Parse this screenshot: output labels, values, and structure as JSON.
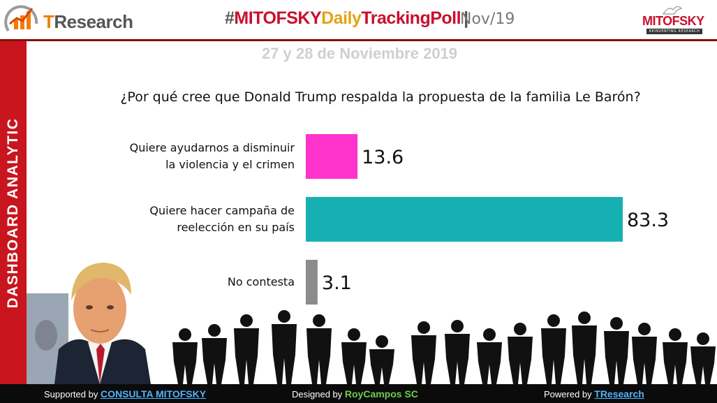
{
  "header": {
    "brand_left_a": "T",
    "brand_left_b": "Research",
    "title_hash": "#",
    "title_part1": "MITOFSKY",
    "title_part2": "Daily",
    "title_part3": "TrackingPoll",
    "title_separator": "|",
    "month": "Nov/19",
    "brand_right": "MITOFSKY",
    "brand_right_tagline": "REINVENTING RESEARCH"
  },
  "sidebar": {
    "label": "DASHBOARD  ANALYTIC"
  },
  "date_line": "27 y 28 de Noviembre 2019",
  "colors": {
    "accent_red": "#c9151e",
    "bar_1": "#ff33cc",
    "bar_2": "#17b0b2",
    "bar_3": "#8c8c8c"
  },
  "chart_data": {
    "type": "bar",
    "orientation": "horizontal",
    "title": "¿Por qué cree que Donald Trump respalda la propuesta de la familia Le Barón?",
    "categories": [
      [
        "Quiere ayudarnos a disminuir",
        "la violencia y el crimen"
      ],
      [
        "Quiere hacer campaña de",
        "reelección en su país"
      ],
      [
        "No contesta"
      ]
    ],
    "values": [
      13.6,
      83.3,
      3.1
    ],
    "value_labels": [
      "13.6",
      "83.3",
      "3.1"
    ],
    "colors": [
      "#ff33cc",
      "#17b0b2",
      "#8c8c8c"
    ],
    "xlim": [
      0,
      100
    ],
    "grid": false,
    "legend": "none"
  },
  "footer": {
    "left_prefix": "Supported by ",
    "left_link": "CONSULTA MITOFSKY",
    "mid_prefix": "Designed by ",
    "mid_link": "RoyCampos SC",
    "right_prefix": "Powered by ",
    "right_link": "TResearch"
  }
}
